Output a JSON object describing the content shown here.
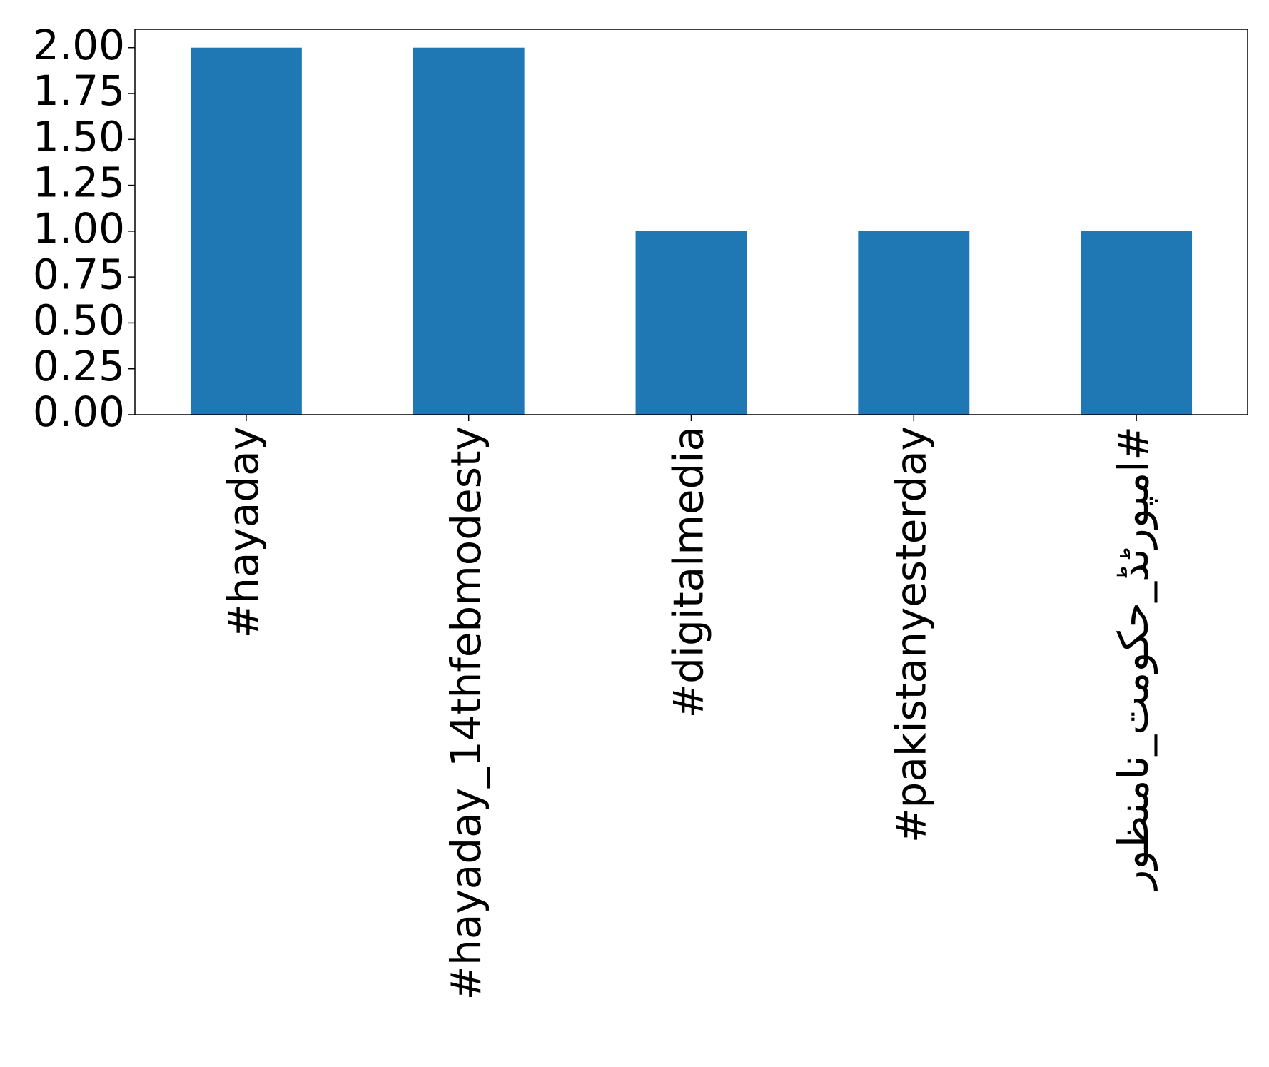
{
  "chart_data": {
    "type": "bar",
    "categories": [
      "#hayaday",
      "#hayaday_14thfebmodesty",
      "#digitalmedia",
      "#pakistanyesterday",
      "#امپورٹڈ_حکومت_نامنظور"
    ],
    "values": [
      2,
      2,
      1,
      1,
      1
    ],
    "color": "#1f77b4",
    "ylim": [
      0,
      2.1
    ],
    "yticks": [
      {
        "value": 0,
        "label": "0.00"
      },
      {
        "value": 0.25,
        "label": "0.25"
      },
      {
        "value": 0.5,
        "label": "0.50"
      },
      {
        "value": 0.75,
        "label": "0.75"
      },
      {
        "value": 1,
        "label": "1.00"
      },
      {
        "value": 1.25,
        "label": "1.25"
      },
      {
        "value": 1.5,
        "label": "1.50"
      },
      {
        "value": 1.75,
        "label": "1.75"
      },
      {
        "value": 2,
        "label": "2.00"
      }
    ],
    "grid": false
  }
}
